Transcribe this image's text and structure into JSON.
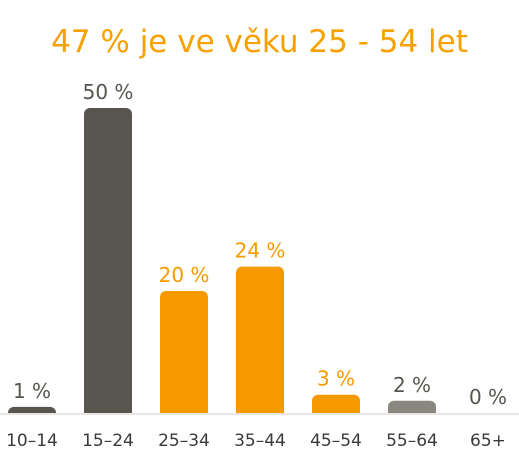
{
  "colors": {
    "title": "#f7a100",
    "highlight": "#f79a00",
    "dark": "#58554f",
    "muted": "#8a8780",
    "tick_text": "#3a3a3a",
    "baseline": "#e8e6e2"
  },
  "chart_data": {
    "type": "bar",
    "title": "47 % je ve věku 25 - 54 let",
    "xlabel": "",
    "ylabel": "",
    "ylim": [
      0,
      50
    ],
    "grid": false,
    "legend": "none",
    "categories": [
      "10–14",
      "15–24",
      "25–34",
      "35–44",
      "45–54",
      "55–64",
      "65+"
    ],
    "values": [
      1,
      50,
      20,
      24,
      3,
      2,
      0
    ],
    "value_labels": [
      "1 %",
      "50 %",
      "20 %",
      "24 %",
      "3 %",
      "2 %",
      "0 %"
    ],
    "bar_colors": [
      "#58554f",
      "#58554f",
      "#f79a00",
      "#f79a00",
      "#f79a00",
      "#8a8780",
      "#8a8780"
    ],
    "label_colors": [
      "#58554f",
      "#58554f",
      "#f79a00",
      "#f79a00",
      "#f79a00",
      "#58554f",
      "#58554f"
    ]
  }
}
